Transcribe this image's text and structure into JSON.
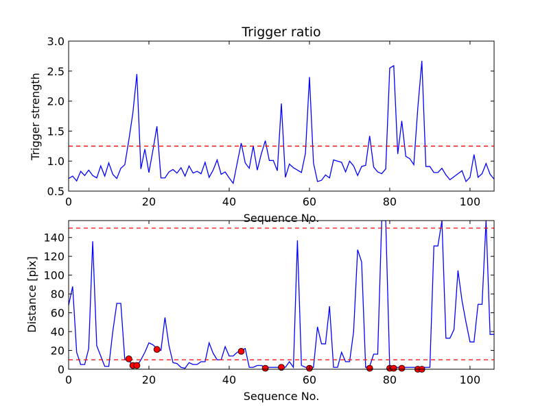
{
  "chart_data": [
    {
      "type": "line",
      "title": "Trigger ratio",
      "xlabel": "Sequence No.",
      "ylabel": "Trigger strength",
      "xlim": [
        0,
        106
      ],
      "ylim": [
        0.5,
        3.0
      ],
      "xticks": [
        "0",
        "20",
        "40",
        "60",
        "80",
        "100"
      ],
      "yticks": [
        "0.5",
        "1.0",
        "1.5",
        "2.0",
        "2.5",
        "3.0"
      ],
      "line_color": "#0000ff",
      "threshold": {
        "value": 1.25,
        "color": "#ff0000",
        "style": "dashed"
      },
      "series": [
        {
          "x": [
            0,
            1,
            2,
            3,
            4,
            5,
            6,
            7,
            8,
            9,
            10,
            11,
            12,
            13,
            14,
            15,
            16,
            17,
            18,
            19,
            20,
            21,
            22,
            23,
            24,
            25,
            26,
            27,
            28,
            29,
            30,
            31,
            32,
            33,
            34,
            35,
            36,
            37,
            38,
            39,
            40,
            41,
            42,
            43,
            44,
            45,
            46,
            47,
            48,
            49,
            50,
            51,
            52,
            53,
            54,
            55,
            56,
            57,
            58,
            59,
            60,
            61,
            62,
            63,
            64,
            65,
            66,
            67,
            68,
            69,
            70,
            71,
            72,
            73,
            74,
            75,
            76,
            77,
            78,
            79,
            80,
            81,
            82,
            83,
            84,
            85,
            86,
            87,
            88,
            89,
            90,
            91,
            92,
            93,
            94,
            95,
            96,
            97,
            98,
            99,
            100,
            101,
            102,
            103,
            104,
            105,
            106
          ],
          "values": [
            0.71,
            0.75,
            0.67,
            0.83,
            0.76,
            0.85,
            0.76,
            0.72,
            0.92,
            0.75,
            0.97,
            0.78,
            0.71,
            0.88,
            0.94,
            1.35,
            1.8,
            2.45,
            0.87,
            1.2,
            0.81,
            1.18,
            1.58,
            0.72,
            0.72,
            0.82,
            0.86,
            0.8,
            0.89,
            0.75,
            0.92,
            0.8,
            0.83,
            0.79,
            0.98,
            0.73,
            0.85,
            1.02,
            0.78,
            0.82,
            0.72,
            0.63,
            0.97,
            1.3,
            0.97,
            0.88,
            1.25,
            0.85,
            1.12,
            1.34,
            1.01,
            1.01,
            0.84,
            1.96,
            0.73,
            0.95,
            0.89,
            0.85,
            0.81,
            1.13,
            2.4,
            0.97,
            0.66,
            0.68,
            0.77,
            0.72,
            1.02,
            1.0,
            0.98,
            0.82,
            1.0,
            0.92,
            0.76,
            0.91,
            0.93,
            1.42,
            0.9,
            0.82,
            0.79,
            0.87,
            2.55,
            2.59,
            1.12,
            1.67,
            1.08,
            1.04,
            0.94,
            1.89,
            2.67,
            0.91,
            0.91,
            0.81,
            0.81,
            0.88,
            0.77,
            0.69,
            0.74,
            0.79,
            0.84,
            0.66,
            0.73,
            1.11,
            0.73,
            0.79,
            0.96,
            0.78,
            0.7
          ]
        }
      ]
    },
    {
      "type": "line",
      "title": "",
      "xlabel": "Sequence No.",
      "ylabel": "Distance [pix]",
      "xlim": [
        0,
        106
      ],
      "ylim": [
        0,
        158
      ],
      "xticks": [
        "0",
        "20",
        "40",
        "60",
        "80",
        "100"
      ],
      "yticks": [
        "0",
        "20",
        "40",
        "60",
        "80",
        "100",
        "120",
        "140"
      ],
      "line_color": "#0000ff",
      "marker_color": "#ff0000",
      "thresholds": [
        {
          "value": 150,
          "color": "#ff0000",
          "style": "dashed"
        },
        {
          "value": 10,
          "color": "#ff0000",
          "style": "dashed"
        }
      ],
      "series": [
        {
          "x": [
            0,
            1,
            2,
            3,
            4,
            5,
            6,
            7,
            8,
            9,
            10,
            11,
            12,
            13,
            14,
            15,
            16,
            17,
            18,
            19,
            20,
            21,
            22,
            23,
            24,
            25,
            26,
            27,
            28,
            29,
            30,
            31,
            32,
            33,
            34,
            35,
            36,
            37,
            38,
            39,
            40,
            41,
            42,
            43,
            44,
            45,
            46,
            47,
            48,
            49,
            50,
            51,
            52,
            53,
            54,
            55,
            56,
            57,
            58,
            59,
            60,
            61,
            62,
            63,
            64,
            65,
            66,
            67,
            68,
            69,
            70,
            71,
            72,
            73,
            74,
            75,
            76,
            77,
            78,
            79,
            80,
            81,
            82,
            83,
            84,
            85,
            86,
            87,
            88,
            89,
            90,
            91,
            92,
            93,
            94,
            95,
            96,
            97,
            98,
            99,
            100,
            101,
            102,
            103,
            104,
            105,
            106
          ],
          "values": [
            68,
            88,
            18,
            5,
            5,
            22,
            136,
            25,
            14,
            3,
            3,
            40,
            70,
            70,
            10,
            10,
            3,
            3,
            10,
            18,
            28,
            26,
            22,
            20,
            55,
            25,
            7,
            6,
            2,
            1,
            7,
            5,
            5,
            8,
            8,
            28,
            17,
            10,
            10,
            24,
            14,
            14,
            18,
            20,
            22,
            2,
            2,
            4,
            4,
            2,
            2,
            2,
            2,
            2,
            2,
            8,
            2,
            137,
            4,
            2,
            2,
            2,
            45,
            27,
            27,
            67,
            2,
            2,
            18,
            8,
            8,
            40,
            127,
            114,
            2,
            3,
            16,
            16,
            158,
            158,
            2,
            2,
            2,
            2,
            2,
            2,
            2,
            2,
            2,
            2,
            2,
            131,
            131,
            158,
            33,
            33,
            42,
            105,
            73,
            50,
            29,
            29,
            69,
            69,
            158,
            37,
            37
          ]
        },
        {
          "name": "",
          "markers_x": [
            15,
            16,
            17,
            22,
            43,
            49,
            53,
            60,
            75,
            80,
            81,
            83,
            87,
            88
          ],
          "markers_y": [
            11,
            4,
            4,
            21,
            19,
            1,
            2,
            1,
            1,
            1,
            1,
            1,
            0,
            0
          ]
        }
      ]
    }
  ]
}
